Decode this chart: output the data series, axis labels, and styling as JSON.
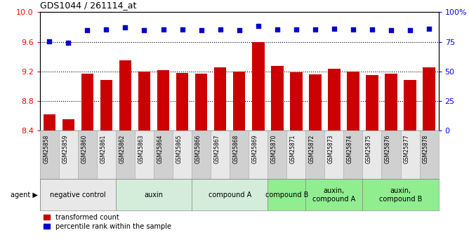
{
  "title": "GDS1044 / 261114_at",
  "samples": [
    "GSM25858",
    "GSM25859",
    "GSM25860",
    "GSM25861",
    "GSM25862",
    "GSM25863",
    "GSM25864",
    "GSM25865",
    "GSM25866",
    "GSM25867",
    "GSM25868",
    "GSM25869",
    "GSM25870",
    "GSM25871",
    "GSM25872",
    "GSM25873",
    "GSM25874",
    "GSM25875",
    "GSM25876",
    "GSM25877",
    "GSM25878"
  ],
  "bar_values": [
    8.62,
    8.55,
    9.17,
    9.08,
    9.35,
    9.2,
    9.22,
    9.18,
    9.17,
    9.25,
    9.2,
    9.6,
    9.27,
    9.19,
    9.16,
    9.24,
    9.2,
    9.15,
    9.17,
    9.08,
    9.25
  ],
  "percentile_values": [
    75.5,
    74.2,
    85.0,
    85.2,
    87.0,
    85.0,
    85.5,
    85.2,
    85.0,
    85.5,
    85.0,
    88.5,
    85.5,
    85.2,
    85.2,
    86.0,
    85.5,
    85.2,
    85.0,
    84.5,
    85.8
  ],
  "bar_color": "#cc0000",
  "dot_color": "#0000cc",
  "ylim_left": [
    8.4,
    10.0
  ],
  "ylim_right": [
    0,
    100
  ],
  "yticks_left": [
    8.4,
    8.8,
    9.2,
    9.6,
    10.0
  ],
  "yticks_right": [
    0,
    25,
    50,
    75,
    100
  ],
  "grid_values": [
    8.8,
    9.2,
    9.6
  ],
  "agent_groups": [
    {
      "label": "negative control",
      "start": 0,
      "end": 4,
      "color": "#e8e8e8"
    },
    {
      "label": "auxin",
      "start": 4,
      "end": 8,
      "color": "#d4edda"
    },
    {
      "label": "compound A",
      "start": 8,
      "end": 12,
      "color": "#d4edda"
    },
    {
      "label": "compound B",
      "start": 12,
      "end": 14,
      "color": "#90ee90"
    },
    {
      "label": "auxin,\ncompound A",
      "start": 14,
      "end": 17,
      "color": "#90ee90"
    },
    {
      "label": "auxin,\ncompound B",
      "start": 17,
      "end": 21,
      "color": "#90ee90"
    }
  ],
  "legend_bar_label": "transformed count",
  "legend_dot_label": "percentile rank within the sample",
  "agent_label": "agent"
}
